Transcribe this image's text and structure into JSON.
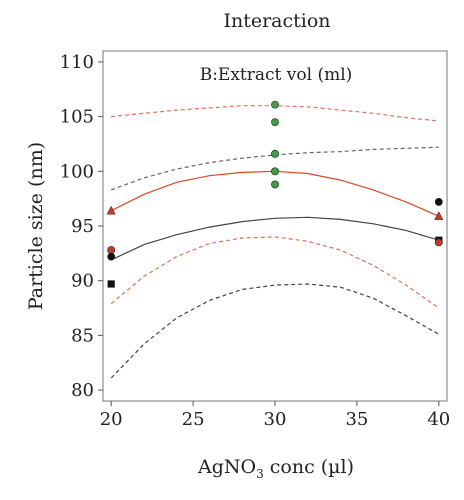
{
  "chart_data": {
    "type": "line",
    "title": "Interaction",
    "annotation": "B:Extract vol (ml)",
    "xlabel": {
      "main": "AgNO",
      "sub": "3",
      "rest": " conc (µl)"
    },
    "ylabel": "Particle size (nm)",
    "xlim": [
      19.5,
      40.5
    ],
    "ylim": [
      79,
      111
    ],
    "xticks": [
      20,
      25,
      30,
      35,
      40
    ],
    "yticks": [
      80,
      85,
      90,
      95,
      100,
      105,
      110
    ],
    "series": [
      {
        "color": "#444444",
        "style": "solid",
        "role": "fit",
        "x": [
          20,
          22,
          24,
          26,
          28,
          30,
          32,
          34,
          36,
          38,
          40
        ],
        "y": [
          91.9,
          93.3,
          94.2,
          94.9,
          95.4,
          95.7,
          95.8,
          95.6,
          95.2,
          94.6,
          93.7
        ]
      },
      {
        "color": "#666666",
        "style": "dashed",
        "role": "upper-ci",
        "x": [
          20,
          22,
          24,
          26,
          28,
          30,
          32,
          34,
          36,
          38,
          40
        ],
        "y": [
          98.3,
          99.4,
          100.2,
          100.8,
          101.2,
          101.5,
          101.7,
          101.8,
          102.0,
          102.1,
          102.2
        ]
      },
      {
        "color": "#444444",
        "style": "dashed",
        "role": "lower-ci",
        "x": [
          20,
          22,
          24,
          26,
          28,
          30,
          32,
          34,
          36,
          38,
          40
        ],
        "y": [
          81.1,
          84.2,
          86.6,
          88.2,
          89.2,
          89.6,
          89.7,
          89.4,
          88.4,
          86.8,
          85.1
        ]
      },
      {
        "color": "#d9472b",
        "style": "solid",
        "role": "fit",
        "x": [
          20,
          22,
          24,
          26,
          28,
          30,
          32,
          34,
          36,
          38,
          40
        ],
        "y": [
          96.4,
          97.9,
          99.0,
          99.6,
          99.9,
          100.0,
          99.8,
          99.2,
          98.3,
          97.2,
          95.9
        ]
      },
      {
        "color": "#e0705a",
        "style": "dashed",
        "role": "upper-ci",
        "x": [
          20,
          22,
          24,
          26,
          28,
          30,
          32,
          34,
          36,
          38,
          40
        ],
        "y": [
          105.0,
          105.3,
          105.6,
          105.8,
          106.0,
          106.0,
          105.9,
          105.6,
          105.3,
          104.9,
          104.6
        ]
      },
      {
        "color": "#e0705a",
        "style": "dashed",
        "role": "lower-ci",
        "x": [
          20,
          22,
          24,
          26,
          28,
          30,
          32,
          34,
          36,
          38,
          40
        ],
        "y": [
          87.9,
          90.4,
          92.2,
          93.4,
          93.9,
          94.0,
          93.6,
          92.8,
          91.4,
          89.6,
          87.5
        ]
      }
    ],
    "points": [
      {
        "x": 20,
        "y": 96.4,
        "shape": "triangle",
        "color": "#c0392b"
      },
      {
        "x": 20,
        "y": 92.8,
        "shape": "circle",
        "color": "#c0392b"
      },
      {
        "x": 20,
        "y": 92.2,
        "shape": "circle",
        "color": "#111111"
      },
      {
        "x": 20,
        "y": 89.7,
        "shape": "square",
        "color": "#111111"
      },
      {
        "x": 30,
        "y": 106.1,
        "shape": "circle",
        "color": "#3f9e44"
      },
      {
        "x": 30,
        "y": 104.5,
        "shape": "circle",
        "color": "#3f9e44"
      },
      {
        "x": 30,
        "y": 101.6,
        "shape": "circle",
        "color": "#3f9e44"
      },
      {
        "x": 30,
        "y": 100.0,
        "shape": "circle",
        "color": "#3f9e44"
      },
      {
        "x": 30,
        "y": 98.8,
        "shape": "circle",
        "color": "#3f9e44"
      },
      {
        "x": 40,
        "y": 97.2,
        "shape": "circle",
        "color": "#111111"
      },
      {
        "x": 40,
        "y": 95.9,
        "shape": "triangle",
        "color": "#c0392b"
      },
      {
        "x": 40,
        "y": 93.7,
        "shape": "square",
        "color": "#111111"
      },
      {
        "x": 40,
        "y": 93.5,
        "shape": "circle",
        "color": "#c0392b"
      }
    ]
  }
}
